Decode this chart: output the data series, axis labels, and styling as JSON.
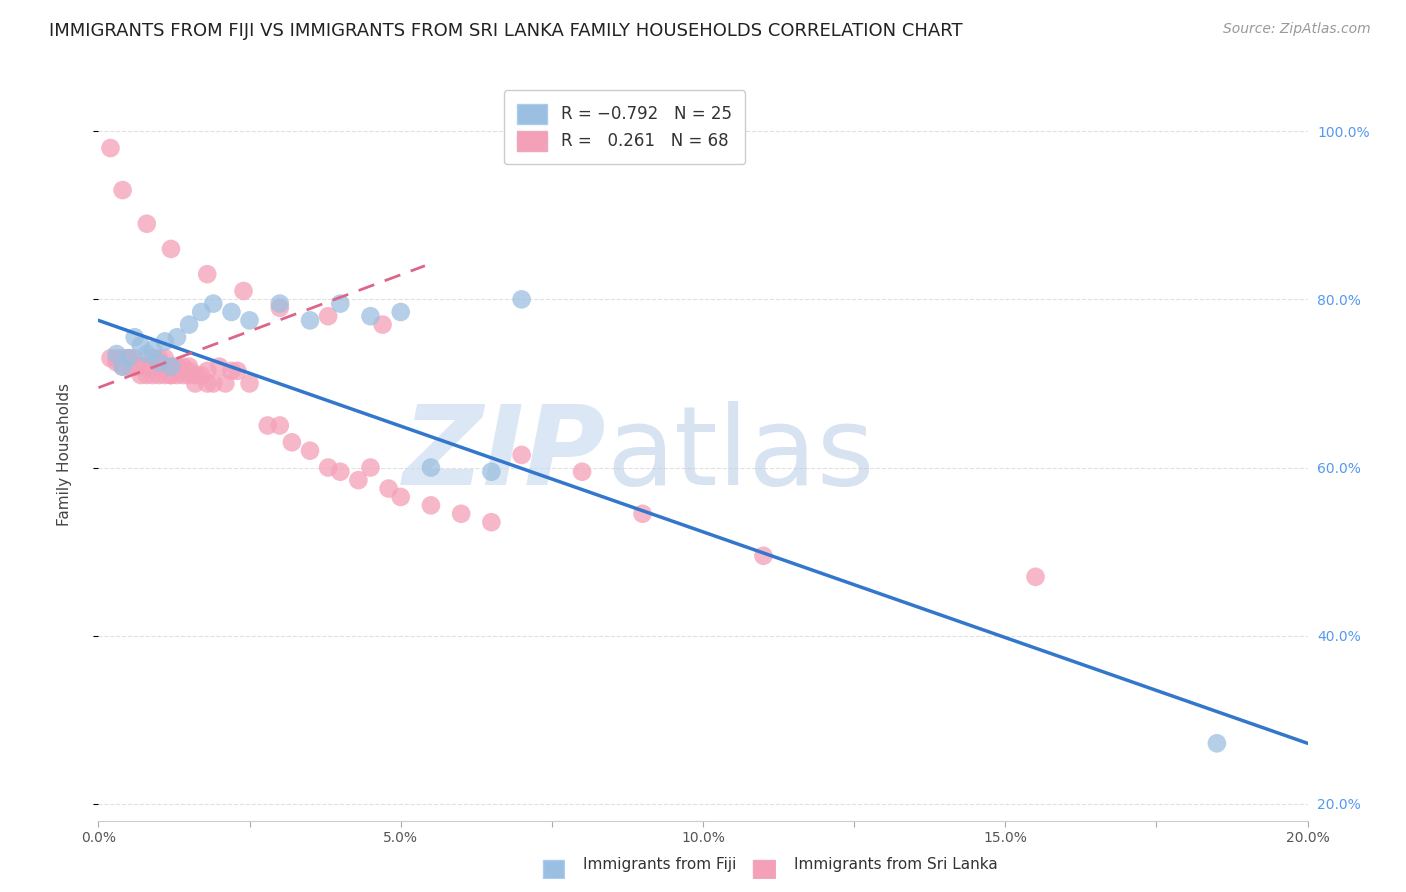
{
  "title": "IMMIGRANTS FROM FIJI VS IMMIGRANTS FROM SRI LANKA FAMILY HOUSEHOLDS CORRELATION CHART",
  "source": "Source: ZipAtlas.com",
  "ylabel": "Family Households",
  "xlim": [
    0.0,
    0.2
  ],
  "ylim": [
    0.18,
    1.05
  ],
  "xtick_labels": [
    "0.0%",
    "",
    "5.0%",
    "",
    "10.0%",
    "",
    "15.0%",
    "",
    "20.0%"
  ],
  "xtick_vals": [
    0.0,
    0.025,
    0.05,
    0.075,
    0.1,
    0.125,
    0.15,
    0.175,
    0.2
  ],
  "ytick_labels_right": [
    "100.0%",
    "80.0%",
    "60.0%",
    "40.0%",
    "20.0%"
  ],
  "ytick_vals": [
    1.0,
    0.8,
    0.6,
    0.4,
    0.2
  ],
  "fiji_color": "#9bbfe0",
  "srilanka_color": "#f4a0b8",
  "fiji_line_color": "#3377cc",
  "srilanka_line_color": "#dd6688",
  "watermark_zip_color": "#ccddf0",
  "watermark_atlas_color": "#b8cce8",
  "fiji_scatter_x": [
    0.003,
    0.004,
    0.005,
    0.006,
    0.007,
    0.008,
    0.009,
    0.01,
    0.011,
    0.012,
    0.013,
    0.015,
    0.017,
    0.019,
    0.022,
    0.025,
    0.03,
    0.035,
    0.04,
    0.045,
    0.05,
    0.055,
    0.065,
    0.07,
    0.185
  ],
  "fiji_scatter_y": [
    0.735,
    0.72,
    0.73,
    0.755,
    0.745,
    0.735,
    0.74,
    0.725,
    0.75,
    0.72,
    0.755,
    0.77,
    0.785,
    0.795,
    0.785,
    0.775,
    0.795,
    0.775,
    0.795,
    0.78,
    0.785,
    0.6,
    0.595,
    0.8,
    0.272
  ],
  "srilanka_scatter_x": [
    0.002,
    0.003,
    0.003,
    0.004,
    0.004,
    0.005,
    0.005,
    0.005,
    0.006,
    0.006,
    0.006,
    0.007,
    0.007,
    0.007,
    0.008,
    0.008,
    0.008,
    0.009,
    0.009,
    0.009,
    0.01,
    0.01,
    0.01,
    0.01,
    0.011,
    0.011,
    0.011,
    0.012,
    0.012,
    0.012,
    0.013,
    0.013,
    0.013,
    0.014,
    0.014,
    0.014,
    0.015,
    0.015,
    0.015,
    0.016,
    0.016,
    0.017,
    0.018,
    0.018,
    0.019,
    0.02,
    0.021,
    0.022,
    0.023,
    0.025,
    0.028,
    0.03,
    0.032,
    0.035,
    0.038,
    0.04,
    0.043,
    0.045,
    0.048,
    0.05,
    0.055,
    0.06,
    0.065,
    0.07,
    0.08,
    0.09,
    0.11,
    0.155
  ],
  "srilanka_scatter_y": [
    0.73,
    0.73,
    0.725,
    0.73,
    0.72,
    0.73,
    0.72,
    0.73,
    0.72,
    0.73,
    0.72,
    0.72,
    0.72,
    0.71,
    0.72,
    0.72,
    0.71,
    0.73,
    0.72,
    0.71,
    0.73,
    0.725,
    0.72,
    0.71,
    0.73,
    0.72,
    0.71,
    0.72,
    0.71,
    0.71,
    0.72,
    0.72,
    0.71,
    0.72,
    0.71,
    0.715,
    0.72,
    0.71,
    0.715,
    0.71,
    0.7,
    0.71,
    0.7,
    0.715,
    0.7,
    0.72,
    0.7,
    0.715,
    0.715,
    0.7,
    0.65,
    0.65,
    0.63,
    0.62,
    0.6,
    0.595,
    0.585,
    0.6,
    0.575,
    0.565,
    0.555,
    0.545,
    0.535,
    0.615,
    0.595,
    0.545,
    0.495,
    0.47
  ],
  "srilanka_outliers_x": [
    0.002,
    0.004,
    0.008,
    0.012,
    0.018,
    0.024,
    0.03,
    0.038,
    0.047
  ],
  "srilanka_outliers_y": [
    0.98,
    0.93,
    0.89,
    0.86,
    0.83,
    0.81,
    0.79,
    0.78,
    0.77
  ],
  "fiji_trend_x": [
    0.0,
    0.2
  ],
  "fiji_trend_y": [
    0.775,
    0.272
  ],
  "srilanka_trend_x": [
    0.0,
    0.054
  ],
  "srilanka_trend_y": [
    0.695,
    0.84
  ],
  "background_color": "#ffffff",
  "grid_color": "#dddddd",
  "title_fontsize": 13,
  "axis_label_fontsize": 11,
  "tick_fontsize": 10,
  "source_fontsize": 10,
  "legend_fontsize": 12
}
